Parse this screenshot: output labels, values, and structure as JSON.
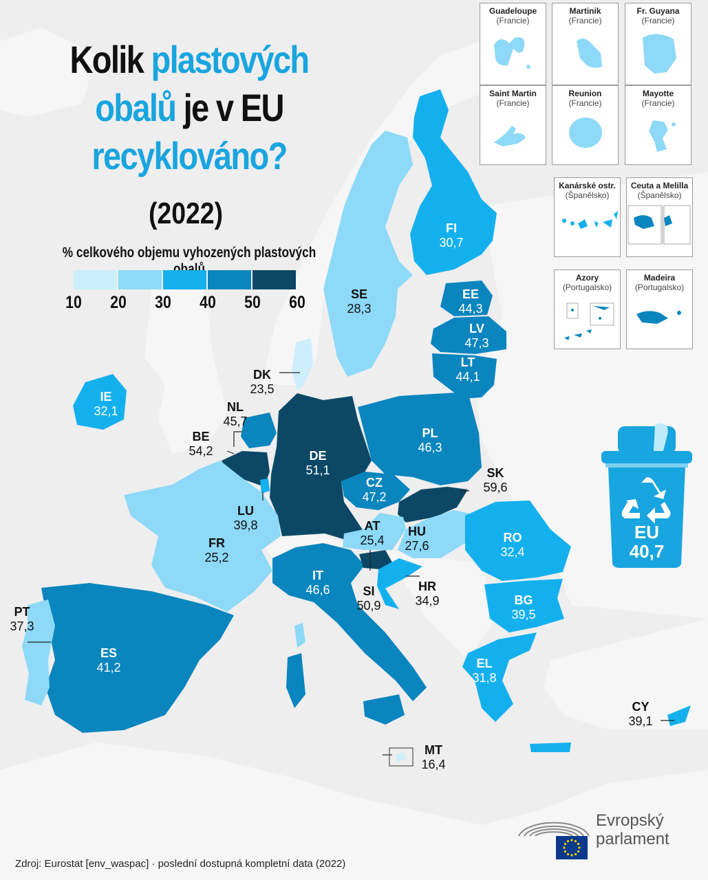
{
  "title": {
    "line1_a": "Kolik",
    "line1_b": "plastových",
    "line2_a": "obalů",
    "line2_b": "je v EU",
    "line3": "recyklováno?",
    "year": "(2022)"
  },
  "legend": {
    "title": "% celkového objemu vyhozených plastových obalů",
    "ticks": [
      "10",
      "20",
      "30",
      "40",
      "50",
      "60"
    ],
    "colors": [
      "#cdeefc",
      "#8dd9f7",
      "#14b0ee",
      "#0a85be",
      "#0c4866"
    ]
  },
  "countries": [
    {
      "code": "FI",
      "value": "30,7"
    },
    {
      "code": "SE",
      "value": "28,3"
    },
    {
      "code": "EE",
      "value": "44,3"
    },
    {
      "code": "LV",
      "value": "47,3"
    },
    {
      "code": "LT",
      "value": "44,1"
    },
    {
      "code": "DK",
      "value": "23,5"
    },
    {
      "code": "IE",
      "value": "32,1"
    },
    {
      "code": "NL",
      "value": "45,7"
    },
    {
      "code": "BE",
      "value": "54,2"
    },
    {
      "code": "DE",
      "value": "51,1"
    },
    {
      "code": "PL",
      "value": "46,3"
    },
    {
      "code": "CZ",
      "value": "47,2"
    },
    {
      "code": "SK",
      "value": "59,6"
    },
    {
      "code": "LU",
      "value": "39,8"
    },
    {
      "code": "AT",
      "value": "25,4"
    },
    {
      "code": "HU",
      "value": "27,6"
    },
    {
      "code": "FR",
      "value": "25,2"
    },
    {
      "code": "RO",
      "value": "32,4"
    },
    {
      "code": "IT",
      "value": "46,6"
    },
    {
      "code": "SI",
      "value": "50,9"
    },
    {
      "code": "HR",
      "value": "34,9"
    },
    {
      "code": "BG",
      "value": "39,5"
    },
    {
      "code": "PT",
      "value": "37,3"
    },
    {
      "code": "ES",
      "value": "41,2"
    },
    {
      "code": "EL",
      "value": "31,8"
    },
    {
      "code": "CY",
      "value": "39,1"
    },
    {
      "code": "MT",
      "value": "16,4"
    }
  ],
  "insets": [
    {
      "name": "Guadeloupe",
      "country": "(Francie)"
    },
    {
      "name": "Martinik",
      "country": "(Francie)"
    },
    {
      "name": "Fr. Guyana",
      "country": "(Francie)"
    },
    {
      "name": "Saint Martin",
      "country": "(Francie)"
    },
    {
      "name": "Reunion",
      "country": "(Francie)"
    },
    {
      "name": "Mayotte",
      "country": "(Francie)"
    },
    {
      "name": "Kanárské ostr.",
      "country": "(Španělsko)"
    },
    {
      "name": "Ceuta a Melilla",
      "country": "(Španělsko)"
    },
    {
      "name": "Azory",
      "country": "(Portugalsko)"
    },
    {
      "name": "Madeira",
      "country": "(Portugalsko)"
    }
  ],
  "eu": {
    "label": "EU",
    "value": "40,7"
  },
  "logo": {
    "line1": "Evropský",
    "line2": "parlament"
  },
  "source": "Zdroj: Eurostat [env_waspac] · poslední dostupná kompletní data (2022)"
}
